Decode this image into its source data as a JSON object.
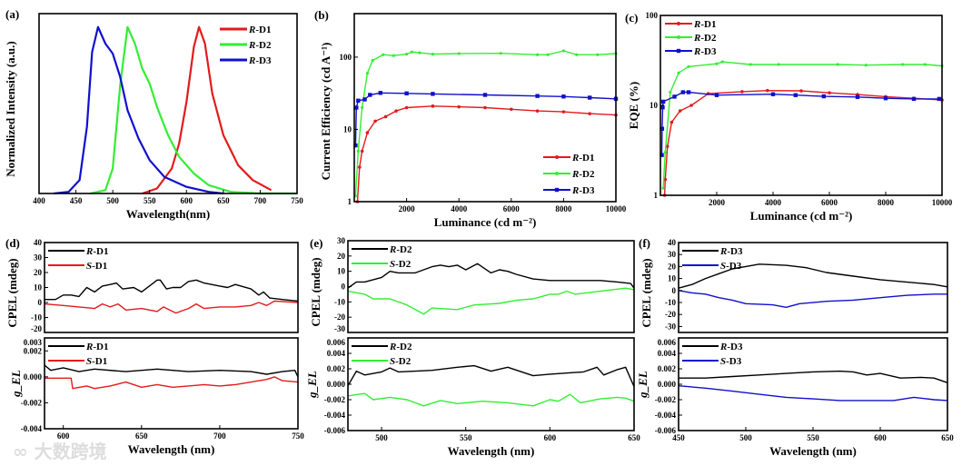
{
  "watermark": "大数跨境",
  "colors": {
    "red": "#e31a1c",
    "green": "#33ee33",
    "blue": "#1010cc",
    "black": "#000000"
  },
  "chart_data": [
    {
      "id": "a",
      "label": "(a)",
      "type": "line",
      "xlabel": "Wavelength(nm)",
      "ylabel": "Normalized Intensity (a.u.)",
      "xlim": [
        400,
        750
      ],
      "ylim": [
        0,
        1.08
      ],
      "xticks": [
        400,
        450,
        500,
        550,
        600,
        650,
        700,
        750
      ],
      "yticks": [],
      "ylog": false,
      "legend": "top-right",
      "series": [
        {
          "name": "R-D1",
          "color": "#e31a1c",
          "x": [
            540,
            560,
            580,
            590,
            600,
            610,
            617,
            625,
            635,
            650,
            670,
            690,
            715
          ],
          "y": [
            0,
            0.03,
            0.15,
            0.3,
            0.55,
            0.88,
            1.0,
            0.9,
            0.6,
            0.35,
            0.17,
            0.08,
            0.02
          ]
        },
        {
          "name": "R-D2",
          "color": "#33ee33",
          "x": [
            470,
            490,
            500,
            510,
            520,
            530,
            540,
            550,
            560,
            575,
            590,
            610,
            630,
            660,
            700,
            750
          ],
          "y": [
            0,
            0.02,
            0.15,
            0.65,
            1.0,
            0.9,
            0.75,
            0.66,
            0.52,
            0.35,
            0.22,
            0.12,
            0.05,
            0.01,
            0,
            0
          ]
        },
        {
          "name": "R-D3",
          "color": "#1010cc",
          "x": [
            420,
            440,
            455,
            465,
            472,
            480,
            490,
            500,
            510,
            520,
            535,
            550,
            570,
            600,
            630,
            650
          ],
          "y": [
            0,
            0.01,
            0.08,
            0.4,
            0.85,
            1.0,
            0.9,
            0.84,
            0.7,
            0.5,
            0.33,
            0.2,
            0.1,
            0.04,
            0.01,
            0
          ]
        }
      ]
    },
    {
      "id": "b",
      "label": "(b)",
      "type": "line",
      "xlabel": "Luminance (cd m⁻²)",
      "ylabel": "Current Efficiency (cd A⁻¹)",
      "xlim": [
        0,
        10000
      ],
      "ylim": [
        1,
        400
      ],
      "ylog": true,
      "xticks": [
        2000,
        4000,
        6000,
        8000,
        10000
      ],
      "yticks": [
        1,
        10,
        100
      ],
      "legend": "bottom-right",
      "markers": true,
      "series": [
        {
          "name": "R-D1",
          "color": "#e31a1c",
          "x": [
            120,
            200,
            300,
            500,
            800,
            1200,
            1600,
            2000,
            3000,
            4000,
            5000,
            6000,
            7000,
            8000,
            9000,
            10000
          ],
          "y": [
            1,
            3,
            5,
            9,
            13,
            15,
            18,
            20,
            21,
            20.5,
            20,
            19,
            18,
            17.5,
            16.5,
            15.8
          ]
        },
        {
          "name": "R-D2",
          "color": "#33ee33",
          "x": [
            50,
            150,
            300,
            500,
            700,
            1100,
            1500,
            2000,
            2200,
            2500,
            3000,
            4000,
            5600,
            7000,
            7400,
            8000,
            8500,
            9300,
            10000
          ],
          "y": [
            1.2,
            5,
            20,
            60,
            90,
            108,
            105,
            110,
            118,
            115,
            110,
            112,
            113,
            108,
            108,
            122,
            108,
            108,
            112
          ]
        },
        {
          "name": "R-D3",
          "color": "#1010cc",
          "x": [
            50,
            80,
            150,
            400,
            600,
            1000,
            2000,
            3000,
            5000,
            7000,
            8000,
            9000,
            10000
          ],
          "y": [
            6,
            20,
            25,
            26,
            30,
            32,
            31.5,
            31,
            30,
            29,
            28.5,
            27.5,
            26.5
          ]
        }
      ]
    },
    {
      "id": "c",
      "label": "(c)",
      "type": "line",
      "xlabel": "Luminance (cd m⁻²)",
      "ylabel": "EQE (%)",
      "xlim": [
        0,
        10000
      ],
      "ylim": [
        1,
        100
      ],
      "ylog": true,
      "xticks": [
        2000,
        4000,
        6000,
        8000,
        10000
      ],
      "yticks": [
        1,
        10,
        100
      ],
      "legend": "top-left",
      "markers": true,
      "series": [
        {
          "name": "R-D1",
          "color": "#e31a1c",
          "x": [
            150,
            170,
            250,
            400,
            700,
            1100,
            1700,
            2900,
            3800,
            5000,
            6000,
            7000,
            8000,
            9000,
            10000
          ],
          "y": [
            1,
            1.5,
            3.5,
            6.5,
            8.7,
            10,
            13.5,
            14.2,
            14.6,
            14.5,
            13.8,
            13.2,
            12.5,
            12,
            11.5
          ]
        },
        {
          "name": "R-D2",
          "color": "#33ee33",
          "x": [
            100,
            170,
            350,
            650,
            1000,
            2000,
            2200,
            3200,
            4200,
            6300,
            7300,
            8600,
            9400,
            10000
          ],
          "y": [
            1.2,
            3,
            14,
            23,
            27,
            29,
            30.5,
            28.5,
            28.5,
            28.5,
            28,
            28.5,
            28.5,
            27.5
          ]
        },
        {
          "name": "R-D3",
          "color": "#1010cc",
          "x": [
            50,
            60,
            80,
            100,
            500,
            800,
            1000,
            2000,
            4000,
            4800,
            5800,
            7000,
            8000,
            9000,
            9900
          ],
          "y": [
            2.8,
            5.5,
            9.5,
            11,
            12.5,
            14,
            14,
            13,
            13.3,
            13,
            12.6,
            12.4,
            12,
            11.8,
            11.8
          ]
        }
      ]
    },
    {
      "id": "d1",
      "label": "(d)",
      "type": "line",
      "xlabel": "",
      "ylabel": "CPEL (mdeg)",
      "xlim": [
        588,
        750
      ],
      "ylim": [
        -20,
        40
      ],
      "ylog": false,
      "xticks": [],
      "yticks": [
        -20,
        -10,
        0,
        10,
        20,
        30,
        40
      ],
      "legend": "top-left",
      "series": [
        {
          "name": "R-D1",
          "color": "#000000",
          "x": [
            588,
            595,
            600,
            605,
            610,
            615,
            620,
            625,
            630,
            634,
            638,
            645,
            650,
            655,
            660,
            662,
            666,
            670,
            675,
            680,
            685,
            690,
            700,
            705,
            710,
            720,
            725,
            728,
            732,
            740,
            750
          ],
          "y": [
            2,
            2,
            5,
            5,
            4,
            10,
            7,
            11,
            12,
            13,
            9,
            10,
            7,
            11,
            15,
            15,
            9,
            10,
            10,
            14,
            15,
            13,
            11,
            10,
            12,
            9,
            5,
            7,
            3,
            2,
            1
          ]
        },
        {
          "name": "S-D1",
          "color": "#e31a1c",
          "x": [
            588,
            600,
            610,
            620,
            625,
            630,
            635,
            640,
            650,
            660,
            664,
            672,
            680,
            685,
            690,
            700,
            710,
            720,
            725,
            730,
            735,
            750
          ],
          "y": [
            -1,
            -2,
            -3,
            -4,
            -1,
            -3,
            -1,
            -5,
            -4,
            -6,
            -3,
            -7,
            -4,
            -1,
            -4,
            -3,
            -3,
            -2,
            0,
            -2,
            1,
            0
          ]
        }
      ]
    },
    {
      "id": "d2",
      "label": "",
      "type": "line",
      "xlabel": "Wavelength (nm)",
      "ylabel": "g_EL",
      "xlim": [
        588,
        750
      ],
      "ylim": [
        -0.004,
        0.003
      ],
      "ylog": false,
      "xticks": [
        600,
        650,
        700,
        750
      ],
      "yticks": [
        -0.004,
        -0.002,
        0.0,
        0.002,
        0.003
      ],
      "ytickfmt": 3,
      "legend": "top-left",
      "series": [
        {
          "name": "R-D1",
          "color": "#000000",
          "x": [
            588,
            592,
            600,
            610,
            620,
            640,
            660,
            680,
            700,
            720,
            730,
            740,
            748,
            750
          ],
          "y": [
            0.0009,
            0.0005,
            0.0007,
            0.0004,
            0.0006,
            0.0004,
            0.0006,
            0.0004,
            0.0005,
            0.0004,
            0.0002,
            0.0004,
            0.0005,
            0
          ]
        },
        {
          "name": "S-D1",
          "color": "#e31a1c",
          "x": [
            588,
            605,
            606,
            615,
            620,
            630,
            640,
            650,
            660,
            670,
            680,
            690,
            700,
            710,
            720,
            730,
            735,
            740,
            750
          ],
          "y": [
            -0.0001,
            -0.0001,
            -0.0009,
            -0.0007,
            -0.0009,
            -0.0007,
            -0.0004,
            -0.0008,
            -0.0006,
            -0.0008,
            -0.0007,
            -0.0006,
            -0.0007,
            -0.0006,
            -0.0004,
            -0.0002,
            0,
            -0.0003,
            -0.0004
          ]
        }
      ]
    },
    {
      "id": "e1",
      "label": "(e)",
      "type": "line",
      "xlabel": "",
      "ylabel": "CPEL (mdeg)",
      "xlim": [
        480,
        650
      ],
      "ylim": [
        -30,
        30
      ],
      "ylog": false,
      "xticks": [],
      "yticks": [
        -30,
        -20,
        -10,
        0,
        10,
        20,
        30
      ],
      "legend": "top-left",
      "series": [
        {
          "name": "R-D2",
          "color": "#000000",
          "x": [
            480,
            485,
            490,
            500,
            505,
            510,
            520,
            530,
            535,
            540,
            545,
            550,
            557,
            565,
            570,
            575,
            580,
            590,
            600,
            620,
            630,
            640,
            648,
            650
          ],
          "y": [
            -1,
            3,
            3,
            6,
            10,
            9,
            9,
            13,
            14,
            13,
            14,
            11,
            15,
            9,
            11,
            10,
            8,
            5,
            4,
            4,
            4,
            3,
            2,
            -1
          ]
        },
        {
          "name": "S-D2",
          "color": "#33ee33",
          "x": [
            480,
            490,
            495,
            505,
            515,
            525,
            530,
            545,
            555,
            570,
            580,
            590,
            600,
            605,
            610,
            615,
            630,
            645,
            650
          ],
          "y": [
            -3,
            -5,
            -8,
            -8,
            -12,
            -18,
            -14,
            -15,
            -12,
            -11,
            -9,
            -8,
            -5,
            -5,
            -3,
            -5,
            -3,
            -1,
            -2
          ]
        }
      ]
    },
    {
      "id": "e2",
      "label": "",
      "type": "line",
      "xlabel": "Wavelength (nm)",
      "ylabel": "g_EL",
      "xlim": [
        480,
        650
      ],
      "ylim": [
        -0.006,
        0.006
      ],
      "ylog": false,
      "xticks": [
        500,
        550,
        600,
        650
      ],
      "yticks": [
        -0.006,
        -0.004,
        -0.002,
        0.0,
        0.002,
        0.004,
        0.006
      ],
      "ytickfmt": 3,
      "legend": "top-left",
      "series": [
        {
          "name": "R-D2",
          "color": "#000000",
          "x": [
            480,
            485,
            490,
            500,
            505,
            510,
            520,
            530,
            545,
            555,
            565,
            575,
            590,
            600,
            620,
            628,
            632,
            640,
            645,
            650
          ],
          "y": [
            -0.0002,
            0.0017,
            0.0012,
            0.0016,
            0.0021,
            0.0016,
            0.0017,
            0.0018,
            0.0022,
            0.0024,
            0.0017,
            0.0022,
            0.0011,
            0.0013,
            0.0016,
            0.0022,
            0.0012,
            0.0019,
            0.0022,
            -0.0003
          ]
        },
        {
          "name": "S-D2",
          "color": "#33ee33",
          "x": [
            480,
            490,
            495,
            505,
            515,
            525,
            535,
            545,
            560,
            575,
            590,
            600,
            605,
            612,
            618,
            630,
            640,
            645,
            650
          ],
          "y": [
            -0.0015,
            -0.0012,
            -0.002,
            -0.0017,
            -0.002,
            -0.0028,
            -0.0021,
            -0.0025,
            -0.0022,
            -0.0024,
            -0.0028,
            -0.002,
            -0.0022,
            -0.0013,
            -0.0024,
            -0.0019,
            -0.0017,
            -0.0018,
            -0.0022
          ]
        }
      ]
    },
    {
      "id": "f1",
      "label": "(f)",
      "type": "line",
      "xlabel": "",
      "ylabel": "CPEL (mdeg)",
      "xlim": [
        450,
        650
      ],
      "ylim": [
        -35,
        40
      ],
      "ylog": false,
      "xticks": [],
      "yticks": [
        -30,
        -20,
        -10,
        0,
        10,
        20,
        30,
        40
      ],
      "legend": "top-left",
      "series": [
        {
          "name": "R-D3",
          "color": "#000000",
          "x": [
            450,
            460,
            470,
            480,
            490,
            500,
            510,
            530,
            545,
            560,
            580,
            600,
            620,
            640,
            650
          ],
          "y": [
            2,
            5,
            10,
            14,
            18,
            20,
            22,
            21,
            19,
            15,
            12,
            9,
            7,
            5,
            3
          ]
        },
        {
          "name": "S-D3",
          "color": "#1010cc",
          "x": [
            450,
            460,
            470,
            480,
            490,
            500,
            520,
            530,
            540,
            560,
            580,
            600,
            620,
            640,
            650
          ],
          "y": [
            0,
            -2,
            -3,
            -6,
            -8,
            -11,
            -12,
            -14,
            -11,
            -9,
            -8,
            -6,
            -4,
            -3,
            -3
          ]
        }
      ]
    },
    {
      "id": "f2",
      "label": "",
      "type": "line",
      "xlabel": "Wavelength (nm)",
      "ylabel": "g_EL",
      "xlim": [
        450,
        650
      ],
      "ylim": [
        -0.006,
        0.006
      ],
      "ylog": false,
      "xticks": [
        450,
        500,
        550,
        600,
        650
      ],
      "yticks": [
        -0.006,
        -0.004,
        -0.002,
        0.0,
        0.002,
        0.004,
        0.006
      ],
      "ytickfmt": 3,
      "legend": "top-left",
      "series": [
        {
          "name": "R-D3",
          "color": "#000000",
          "x": [
            450,
            470,
            490,
            510,
            530,
            550,
            570,
            580,
            590,
            600,
            615,
            630,
            640,
            650
          ],
          "y": [
            0.0008,
            0.0008,
            0.001,
            0.0012,
            0.0014,
            0.0016,
            0.0017,
            0.0016,
            0.0012,
            0.0014,
            0.0008,
            0.0009,
            0.0008,
            0.0002
          ]
        },
        {
          "name": "S-D3",
          "color": "#1010cc",
          "x": [
            450,
            470,
            490,
            510,
            530,
            550,
            570,
            590,
            610,
            625,
            640,
            650
          ],
          "y": [
            -0.0002,
            -0.0005,
            -0.0009,
            -0.0013,
            -0.0017,
            -0.0019,
            -0.0021,
            -0.0021,
            -0.0021,
            -0.0017,
            -0.002,
            -0.0021
          ]
        }
      ]
    }
  ]
}
